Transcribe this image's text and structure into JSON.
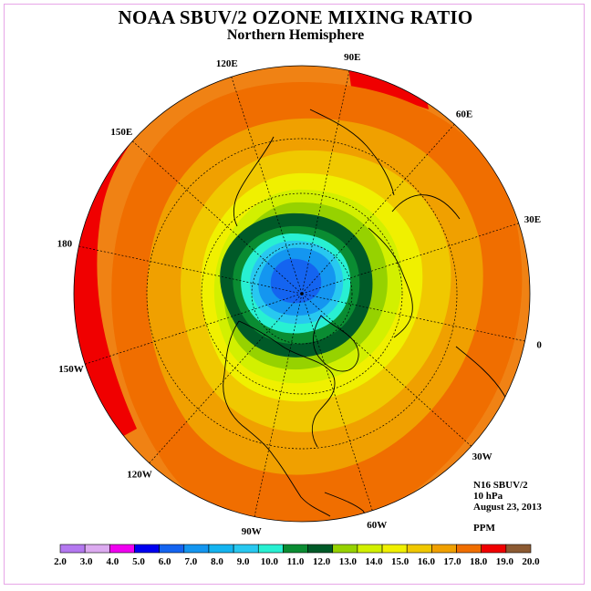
{
  "header": {
    "title": "NOAA SBUV/2 OZONE MIXING RATIO",
    "subtitle": "Northern Hemisphere"
  },
  "map": {
    "projection": "north polar stereographic",
    "longitude_labels": [
      "90E",
      "60E",
      "30E",
      "0",
      "30W",
      "60W",
      "90W",
      "120W",
      "150W",
      "180",
      "150E",
      "120E"
    ],
    "contour_colors": [
      "#0028f0",
      "#1464f0",
      "#1496f0",
      "#28c8f0",
      "#28f0d2",
      "#0a8c32",
      "#005a28",
      "#96d200",
      "#d2f000",
      "#f0f000",
      "#f0c800",
      "#f0a000",
      "#f06e00",
      "#f00000"
    ]
  },
  "info": {
    "instrument": "N16 SBUV/2",
    "level": "10 hPa",
    "date": "August 23, 2013",
    "units": "PPM"
  },
  "colorbar": {
    "ticks": [
      "2.0",
      "3.0",
      "4.0",
      "5.0",
      "6.0",
      "7.0",
      "8.0",
      "9.0",
      "10.0",
      "11.0",
      "12.0",
      "13.0",
      "14.0",
      "15.0",
      "16.0",
      "17.0",
      "18.0",
      "19.0",
      "20.0"
    ],
    "colors": [
      "#b478f0",
      "#dcaaf0",
      "#f000f0",
      "#0000f0",
      "#1464f0",
      "#1496f0",
      "#14b4f0",
      "#28c8f0",
      "#28f0d2",
      "#0a8c32",
      "#005a28",
      "#96d200",
      "#d2f000",
      "#f0f000",
      "#f0c800",
      "#f0a000",
      "#f06e00",
      "#f00000",
      "#8c5a32"
    ]
  }
}
